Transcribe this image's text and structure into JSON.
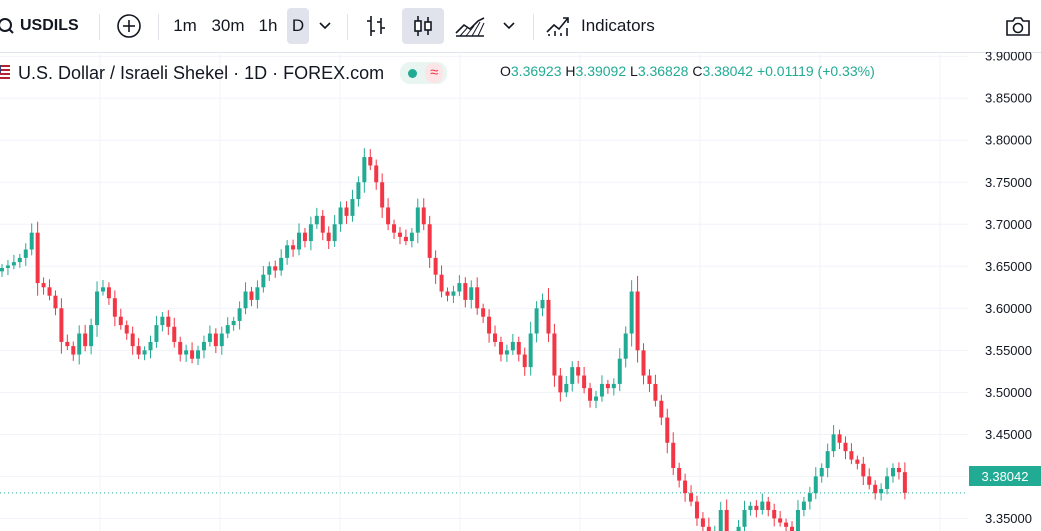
{
  "toolbar": {
    "symbol": "USDILS",
    "intervals": [
      "1m",
      "30m",
      "1h",
      "D"
    ],
    "active_interval": "D",
    "indicators_label": "Indicators",
    "icons": [
      "search-icon",
      "add-symbol-icon",
      "chevron-down-icon",
      "bar-chart-icon",
      "candlestick-icon",
      "area-chart-icon",
      "chevron-down-icon",
      "indicators-icon",
      "camera-icon"
    ]
  },
  "legend": {
    "title": "U.S. Dollar / Israeli Shekel · 1D · FOREX.com",
    "open_label": "O",
    "open": "3.36923",
    "high_label": "H",
    "high": "3.39092",
    "low_label": "L",
    "low": "3.36828",
    "close_label": "C",
    "close": "3.38042",
    "change": "+0.01119 (+0.33%)"
  },
  "price_tag": "3.38042",
  "colors": {
    "up": "#22ab94",
    "down": "#f23645",
    "grid": "#f0f3fa"
  },
  "chart_data": {
    "type": "candlestick",
    "y_axis_ticks": [
      "3.90000",
      "3.85000",
      "3.80000",
      "3.75000",
      "3.70000",
      "3.65000",
      "3.60000",
      "3.55000",
      "3.50000",
      "3.45000",
      "3.40000",
      "3.35000"
    ],
    "ylim": [
      3.335,
      3.905
    ],
    "last_price": 3.38042,
    "closes": [
      3.648,
      3.651,
      3.655,
      3.66,
      3.67,
      3.69,
      3.63,
      3.625,
      3.615,
      3.6,
      3.56,
      3.555,
      3.545,
      3.57,
      3.555,
      3.58,
      3.62,
      3.625,
      3.612,
      3.59,
      3.58,
      3.57,
      3.555,
      3.545,
      3.55,
      3.56,
      3.58,
      3.59,
      3.578,
      3.56,
      3.545,
      3.55,
      3.54,
      3.55,
      3.56,
      3.57,
      3.555,
      3.57,
      3.58,
      3.585,
      3.6,
      3.62,
      3.61,
      3.625,
      3.64,
      3.65,
      3.645,
      3.66,
      3.675,
      3.67,
      3.69,
      3.68,
      3.7,
      3.71,
      3.69,
      3.68,
      3.7,
      3.72,
      3.71,
      3.73,
      3.75,
      3.78,
      3.77,
      3.75,
      3.72,
      3.7,
      3.69,
      3.685,
      3.68,
      3.69,
      3.72,
      3.7,
      3.66,
      3.64,
      3.62,
      3.615,
      3.62,
      3.63,
      3.61,
      3.625,
      3.6,
      3.59,
      3.57,
      3.56,
      3.545,
      3.55,
      3.56,
      3.545,
      3.53,
      3.57,
      3.6,
      3.61,
      3.57,
      3.52,
      3.5,
      3.51,
      3.53,
      3.52,
      3.505,
      3.49,
      3.495,
      3.51,
      3.505,
      3.51,
      3.54,
      3.57,
      3.62,
      3.55,
      3.52,
      3.51,
      3.49,
      3.47,
      3.44,
      3.41,
      3.395,
      3.38,
      3.37,
      3.35,
      3.34,
      3.32,
      3.335,
      3.36,
      3.33,
      3.325,
      3.34,
      3.36,
      3.365,
      3.36,
      3.37,
      3.36,
      3.35,
      3.345,
      3.34,
      3.335,
      3.36,
      3.37,
      3.38,
      3.4,
      3.41,
      3.43,
      3.45,
      3.44,
      3.43,
      3.42,
      3.415,
      3.4,
      3.39,
      3.38,
      3.385,
      3.4,
      3.41,
      3.405,
      3.38042
    ]
  }
}
